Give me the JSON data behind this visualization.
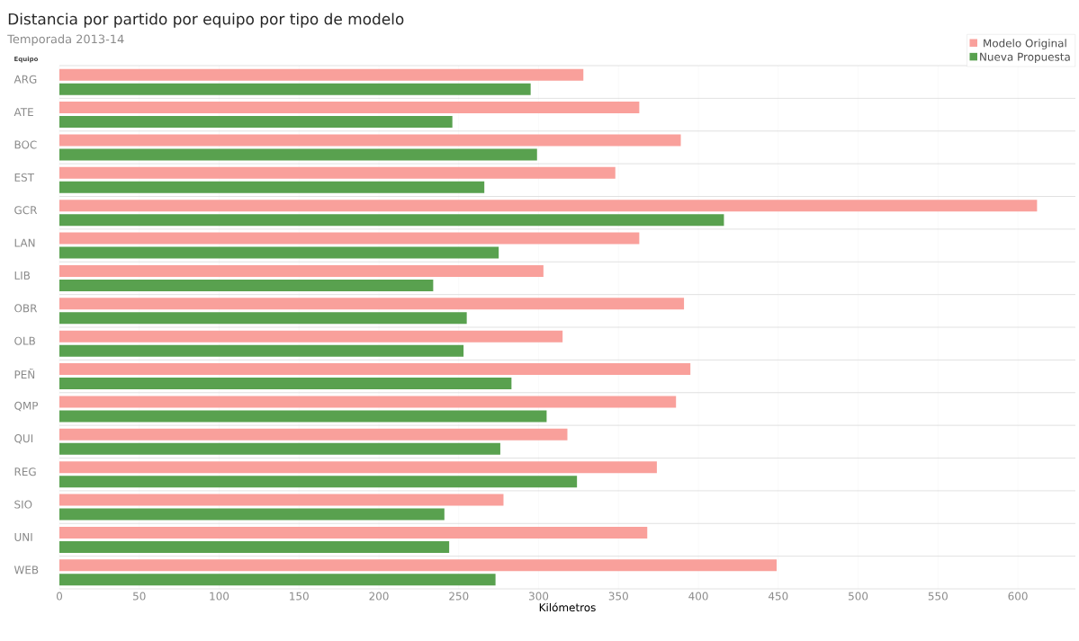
{
  "chart_data": {
    "type": "bar",
    "orientation": "horizontal",
    "title": "Distancia por partido por equipo por tipo de modelo",
    "subtitle": "Temporada 2013-14",
    "ylabel": "Equipo",
    "xlabel": "Kilómetros",
    "categories": [
      "ARG",
      "ATE",
      "BOC",
      "EST",
      "GCR",
      "LAN",
      "LIB",
      "OBR",
      "OLB",
      "PEÑ",
      "QMP",
      "QUI",
      "REG",
      "SIO",
      "UNI",
      "WEB"
    ],
    "series": [
      {
        "name": "Modelo Original",
        "color": "#f9a09b",
        "values": [
          328,
          363,
          389,
          348,
          612,
          363,
          303,
          391,
          315,
          395,
          386,
          318,
          374,
          278,
          368,
          449
        ]
      },
      {
        "name": "Nueva Propuesta",
        "color": "#59a14f",
        "values": [
          295,
          246,
          299,
          266,
          416,
          275,
          234,
          255,
          253,
          283,
          305,
          276,
          324,
          241,
          244,
          273
        ]
      }
    ],
    "xlim": [
      0,
      636
    ],
    "xticks": [
      0,
      50,
      100,
      150,
      200,
      250,
      300,
      350,
      400,
      450,
      500,
      550,
      600
    ],
    "grid": "x",
    "legend": "top right"
  }
}
